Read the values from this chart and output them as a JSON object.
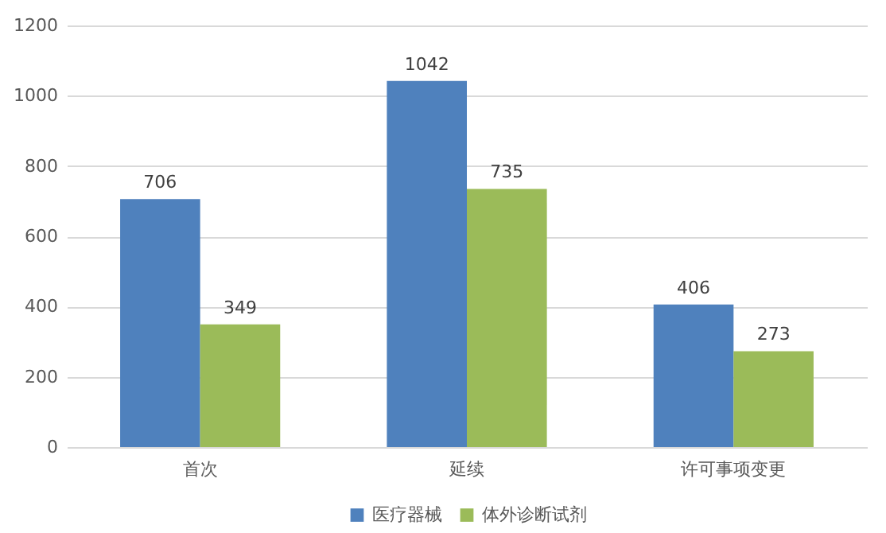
{
  "chart_data": {
    "type": "bar",
    "categories": [
      "首次",
      "延续",
      "许可事项变更"
    ],
    "series": [
      {
        "name": "医疗器械",
        "color": "#4f81bd",
        "values": [
          706,
          1042,
          406
        ]
      },
      {
        "name": "体外诊断试剂",
        "color": "#9bbb59",
        "values": [
          349,
          735,
          273
        ]
      }
    ],
    "ylim": [
      0,
      1200
    ],
    "yticks": [
      0,
      200,
      400,
      600,
      800,
      1000,
      1200
    ],
    "grid": "y",
    "legend": "bottom",
    "data_labels": true
  }
}
